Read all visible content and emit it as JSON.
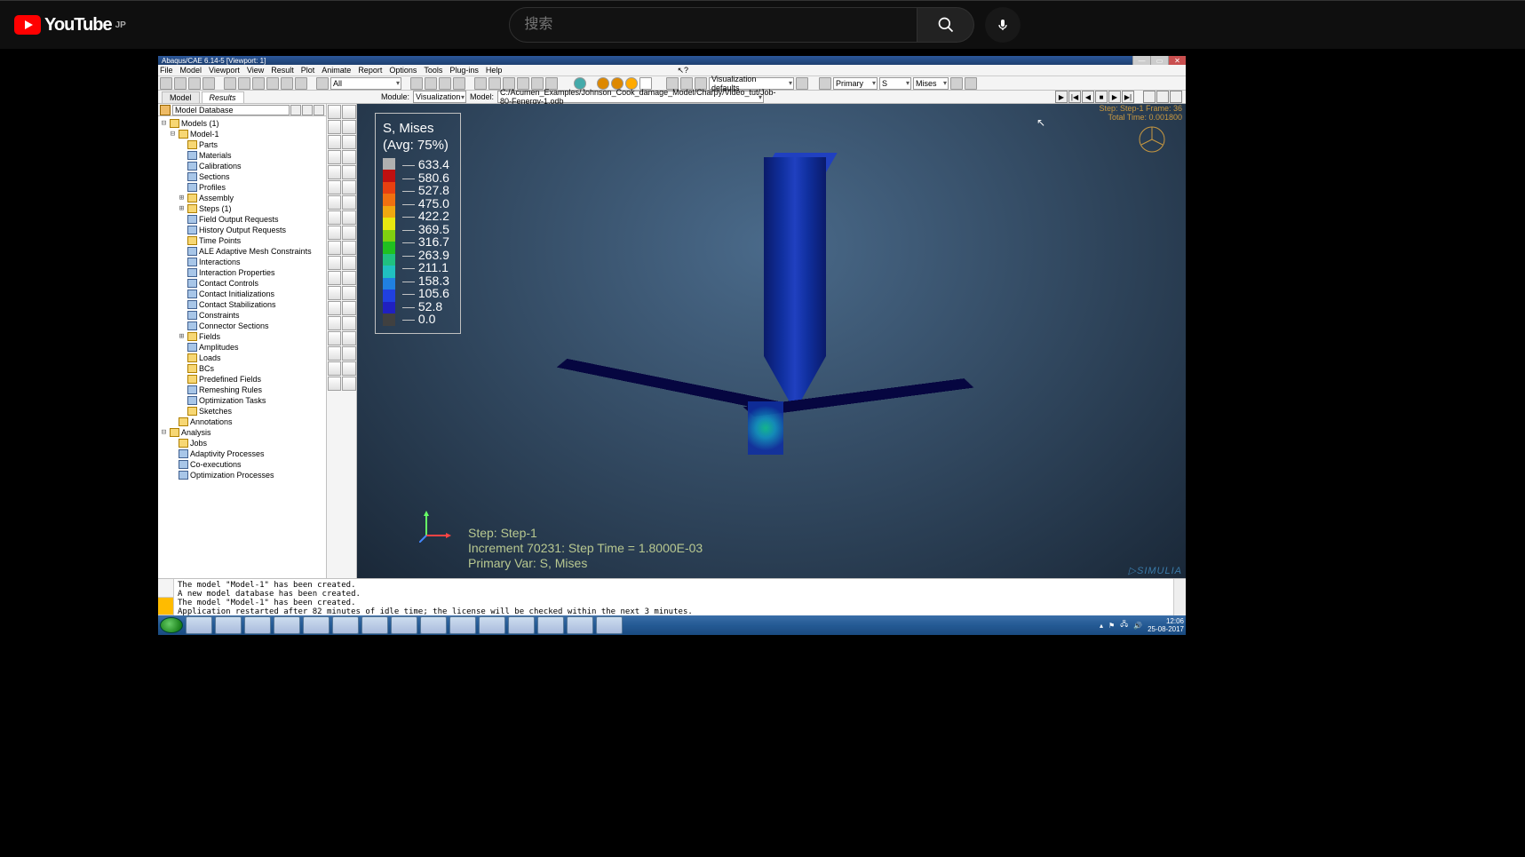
{
  "youtube": {
    "logo_text": "YouTube",
    "region": "JP",
    "search_placeholder": "搜索"
  },
  "abaqus": {
    "title": "Abaqus/CAE 6.14-5 [Viewport: 1]",
    "menus": [
      "File",
      "Model",
      "Viewport",
      "View",
      "Result",
      "Plot",
      "Animate",
      "Report",
      "Options",
      "Tools",
      "Plug-ins",
      "Help"
    ],
    "toolbar2_all": "All",
    "toolbar2_visdef": "Visualization defaults",
    "toolbar2_primary": "Primary",
    "toolbar2_s": "S",
    "toolbar2_mises": "Mises",
    "tabs": {
      "model": "Model",
      "results": "Results"
    },
    "context": {
      "module_label": "Module:",
      "module_value": "Visualization",
      "model_label": "Model:",
      "model_value": "C:/Acumen_Examples/Johnson_Cook_damage_Model/Charpy/Video_tut/Job-80-Fenergy-1.odb"
    },
    "tree_head": "Model Database",
    "tree": [
      {
        "d": 0,
        "ex": "⊟",
        "ic": "",
        "t": "Models (1)"
      },
      {
        "d": 1,
        "ex": "⊟",
        "ic": "",
        "t": "Model-1"
      },
      {
        "d": 2,
        "ex": "",
        "ic": "",
        "t": "Parts"
      },
      {
        "d": 2,
        "ex": "",
        "ic": "b",
        "t": "Materials"
      },
      {
        "d": 2,
        "ex": "",
        "ic": "b",
        "t": "Calibrations"
      },
      {
        "d": 2,
        "ex": "",
        "ic": "b",
        "t": "Sections"
      },
      {
        "d": 2,
        "ex": "",
        "ic": "b",
        "t": "Profiles"
      },
      {
        "d": 2,
        "ex": "⊞",
        "ic": "",
        "t": "Assembly"
      },
      {
        "d": 2,
        "ex": "⊞",
        "ic": "",
        "t": "Steps (1)"
      },
      {
        "d": 2,
        "ex": "",
        "ic": "b",
        "t": "Field Output Requests"
      },
      {
        "d": 2,
        "ex": "",
        "ic": "b",
        "t": "History Output Requests"
      },
      {
        "d": 2,
        "ex": "",
        "ic": "",
        "t": "Time Points"
      },
      {
        "d": 2,
        "ex": "",
        "ic": "b",
        "t": "ALE Adaptive Mesh Constraints"
      },
      {
        "d": 2,
        "ex": "",
        "ic": "b",
        "t": "Interactions"
      },
      {
        "d": 2,
        "ex": "",
        "ic": "b",
        "t": "Interaction Properties"
      },
      {
        "d": 2,
        "ex": "",
        "ic": "b",
        "t": "Contact Controls"
      },
      {
        "d": 2,
        "ex": "",
        "ic": "b",
        "t": "Contact Initializations"
      },
      {
        "d": 2,
        "ex": "",
        "ic": "b",
        "t": "Contact Stabilizations"
      },
      {
        "d": 2,
        "ex": "",
        "ic": "b",
        "t": "Constraints"
      },
      {
        "d": 2,
        "ex": "",
        "ic": "b",
        "t": "Connector Sections"
      },
      {
        "d": 2,
        "ex": "⊞",
        "ic": "",
        "t": "Fields"
      },
      {
        "d": 2,
        "ex": "",
        "ic": "b",
        "t": "Amplitudes"
      },
      {
        "d": 2,
        "ex": "",
        "ic": "",
        "t": "Loads"
      },
      {
        "d": 2,
        "ex": "",
        "ic": "",
        "t": "BCs"
      },
      {
        "d": 2,
        "ex": "",
        "ic": "",
        "t": "Predefined Fields"
      },
      {
        "d": 2,
        "ex": "",
        "ic": "b",
        "t": "Remeshing Rules"
      },
      {
        "d": 2,
        "ex": "",
        "ic": "b",
        "t": "Optimization Tasks"
      },
      {
        "d": 2,
        "ex": "",
        "ic": "",
        "t": "Sketches"
      },
      {
        "d": 1,
        "ex": "",
        "ic": "",
        "t": "Annotations"
      },
      {
        "d": 0,
        "ex": "⊟",
        "ic": "",
        "t": "Analysis"
      },
      {
        "d": 1,
        "ex": "",
        "ic": "",
        "t": "Jobs"
      },
      {
        "d": 1,
        "ex": "",
        "ic": "b",
        "t": "Adaptivity Processes"
      },
      {
        "d": 1,
        "ex": "",
        "ic": "b",
        "t": "Co-executions"
      },
      {
        "d": 1,
        "ex": "",
        "ic": "b",
        "t": "Optimization Processes"
      }
    ],
    "legend": {
      "type": "contour-colorbar",
      "title": "S, Mises",
      "subtitle": "(Avg: 75%)",
      "values": [
        "633.4",
        "580.6",
        "527.8",
        "475.0",
        "422.2",
        "369.5",
        "316.7",
        "263.9",
        "211.1",
        "158.3",
        "105.6",
        "52.8",
        "0.0"
      ],
      "colors": [
        "#b0b0b0",
        "#c01010",
        "#e84010",
        "#f07010",
        "#f0a810",
        "#e8e810",
        "#80d010",
        "#20c020",
        "#20c080",
        "#20c0c0",
        "#2080e0",
        "#2040e0",
        "#2020c0",
        "#404040"
      ],
      "background": "transparent",
      "text_color": "#ffffff",
      "fontsize": 14
    },
    "status": {
      "line1": "Step: Step-1",
      "line2": "Increment     70231: Step Time =   1.8000E-03",
      "line3": "Primary Var: S, Mises"
    },
    "topright": {
      "line1": "Step: Step-1   Frame: 36",
      "line2": "Total Time: 0.001800"
    },
    "brand": "SIMULIA",
    "console": [
      "The model \"Model-1\" has been created.",
      "A new model database has been created.",
      "The model \"Model-1\" has been created.",
      "Application restarted after 82 minutes of idle time; the license will be checked within the next 3 minutes."
    ],
    "taskbar": {
      "time": "12:06",
      "date": "25-08-2017"
    }
  }
}
